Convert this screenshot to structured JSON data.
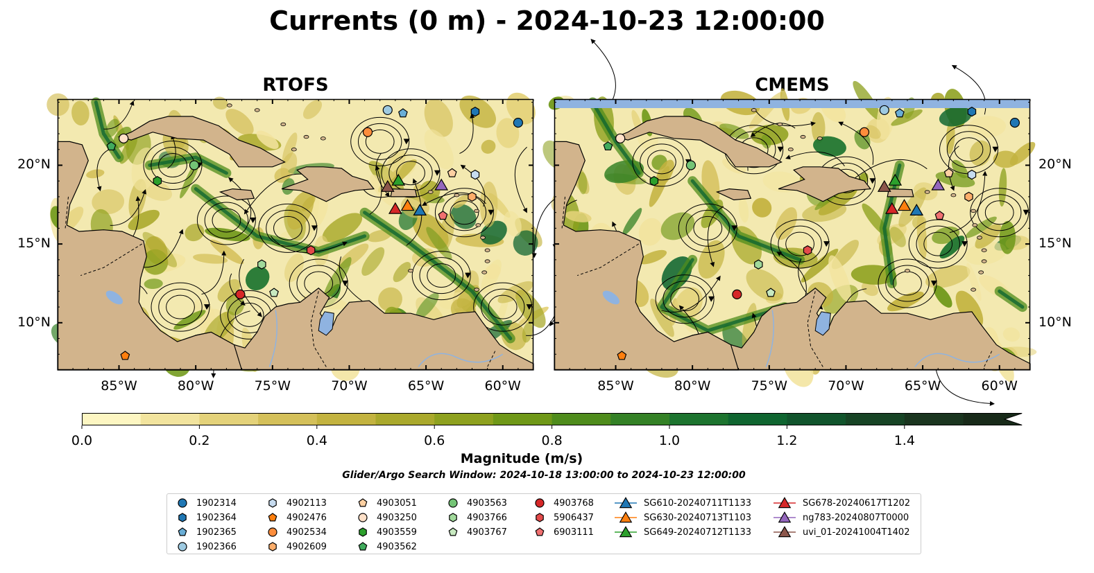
{
  "title": "Currents (0 m) - 2024-10-23 12:00:00",
  "panels": [
    {
      "title": "RTOFS"
    },
    {
      "title": "CMEMS"
    }
  ],
  "axes": {
    "x_ticks": [
      "85°W",
      "80°W",
      "75°W",
      "70°W",
      "65°W",
      "60°W"
    ],
    "y_ticks": [
      "20°N",
      "15°N",
      "10°N"
    ]
  },
  "colorbar": {
    "label": "Magnitude (m/s)",
    "ticks": [
      "0.0",
      "0.2",
      "0.4",
      "0.6",
      "0.8",
      "1.0",
      "1.2",
      "1.4"
    ],
    "colors": [
      "#fdf6c2",
      "#f2e49e",
      "#e4d27a",
      "#d4c05a",
      "#c3b340",
      "#aaa92c",
      "#8ea11f",
      "#6f9818",
      "#4f8c1c",
      "#348126",
      "#1d742f",
      "#0f6530",
      "#11542c",
      "#174425",
      "#1a351f",
      "#182a19"
    ]
  },
  "colors": {
    "land": "#d2b48c",
    "ocean": "#f3e9b0",
    "lake": "#8fb3e0",
    "nodata": "#8fb3e0"
  },
  "search_window": "Glider/Argo Search Window: 2024-10-18 13:00:00 to 2024-10-23 12:00:00",
  "legend": [
    {
      "label": "1902314",
      "marker": "circle",
      "color": "#1f77b4"
    },
    {
      "label": "1902364",
      "marker": "hexagon",
      "color": "#1f77b4"
    },
    {
      "label": "1902365",
      "marker": "pentagon",
      "color": "#6aaed6"
    },
    {
      "label": "1902366",
      "marker": "circle",
      "color": "#9ecae1"
    },
    {
      "label": "4902113",
      "marker": "hexagon",
      "color": "#c6dbef"
    },
    {
      "label": "4902476",
      "marker": "pentagon",
      "color": "#ff7f0e"
    },
    {
      "label": "4902534",
      "marker": "circle",
      "color": "#fd8d3c"
    },
    {
      "label": "4902609",
      "marker": "hexagon",
      "color": "#fdae6b"
    },
    {
      "label": "4903051",
      "marker": "pentagon",
      "color": "#fdd0a2"
    },
    {
      "label": "4903250",
      "marker": "circle",
      "color": "#fee0c8"
    },
    {
      "label": "4903559",
      "marker": "hexagon",
      "color": "#2ca02c"
    },
    {
      "label": "4903562",
      "marker": "pentagon",
      "color": "#41ab5d"
    },
    {
      "label": "4903563",
      "marker": "circle",
      "color": "#74c476"
    },
    {
      "label": "4903766",
      "marker": "hexagon",
      "color": "#a1d99b"
    },
    {
      "label": "4903767",
      "marker": "pentagon",
      "color": "#c7e9c0"
    },
    {
      "label": "4903768",
      "marker": "circle",
      "color": "#d62728"
    },
    {
      "label": "5906437",
      "marker": "hexagon",
      "color": "#e34a4a"
    },
    {
      "label": "6903111",
      "marker": "pentagon",
      "color": "#f07070"
    },
    {
      "label": "SG610-20240711T1133",
      "marker": "triangle",
      "color": "#1f77b4"
    },
    {
      "label": "SG630-20240713T1103",
      "marker": "triangle",
      "color": "#ff7f0e"
    },
    {
      "label": "SG649-20240712T1133",
      "marker": "triangle",
      "color": "#2ca02c"
    },
    {
      "label": "SG678-20240617T1202",
      "marker": "triangle",
      "color": "#d62728"
    },
    {
      "label": "ng783-20240807T0000",
      "marker": "triangle",
      "color": "#9467bd"
    },
    {
      "label": "uvi_01-20241004T1402",
      "marker": "triangle",
      "color": "#8c564b"
    }
  ],
  "chart_data": {
    "type": "scatter",
    "xlim": [
      -89,
      -58
    ],
    "ylim": [
      7,
      24.2
    ],
    "xlabel": "",
    "ylabel": "",
    "background": "ocean surface current magnitude with streamlines",
    "floats": [
      {
        "id": "1902314",
        "x": -59.0,
        "y": 22.7
      },
      {
        "id": "1902364",
        "x": -61.8,
        "y": 23.4
      },
      {
        "id": "1902365",
        "x": -66.5,
        "y": 23.3
      },
      {
        "id": "1902366",
        "x": -67.5,
        "y": 23.5
      },
      {
        "id": "4902113",
        "x": -61.8,
        "y": 19.4
      },
      {
        "id": "4902476",
        "x": -84.6,
        "y": 7.9
      },
      {
        "id": "4902534",
        "x": -68.8,
        "y": 22.1
      },
      {
        "id": "4902609",
        "x": -62.0,
        "y": 18.0
      },
      {
        "id": "4903051",
        "x": -63.3,
        "y": 19.5
      },
      {
        "id": "4903250",
        "x": -84.7,
        "y": 21.7
      },
      {
        "id": "4903559",
        "x": -82.5,
        "y": 19.0
      },
      {
        "id": "4903562",
        "x": -85.5,
        "y": 21.2
      },
      {
        "id": "4903563",
        "x": -80.1,
        "y": 20.0
      },
      {
        "id": "4903766",
        "x": -75.7,
        "y": 13.7
      },
      {
        "id": "4903767",
        "x": -74.9,
        "y": 11.9
      },
      {
        "id": "4903768",
        "x": -77.1,
        "y": 11.8
      },
      {
        "id": "5906437",
        "x": -72.5,
        "y": 14.6
      },
      {
        "id": "6903111",
        "x": -63.9,
        "y": 16.8
      }
    ],
    "gliders": [
      {
        "id": "SG610-20240711T1133",
        "x": -65.4,
        "y": 17.1
      },
      {
        "id": "SG630-20240713T1103",
        "x": -66.2,
        "y": 17.4
      },
      {
        "id": "SG649-20240712T1133",
        "x": -66.8,
        "y": 19.0
      },
      {
        "id": "SG678-20240617T1202",
        "x": -67.0,
        "y": 17.2
      },
      {
        "id": "ng783-20240807T0000",
        "x": -64.0,
        "y": 18.7
      },
      {
        "id": "uvi_01-20241004T1402",
        "x": -67.5,
        "y": 18.6
      }
    ]
  }
}
